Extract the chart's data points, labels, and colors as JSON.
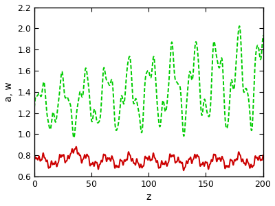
{
  "xlim": [
    0,
    200
  ],
  "ylim": [
    0.6,
    2.2
  ],
  "xlabel": "z",
  "ylabel": "a, w",
  "xticks": [
    0,
    50,
    100,
    150,
    200
  ],
  "yticks": [
    0.6,
    0.8,
    1.0,
    1.2,
    1.4,
    1.6,
    1.8,
    2.0,
    2.2
  ],
  "green_color": "#00cc00",
  "red_color": "#cc0000",
  "background_color": "#ffffff",
  "linewidth_green": 1.4,
  "linewidth_red": 1.4
}
